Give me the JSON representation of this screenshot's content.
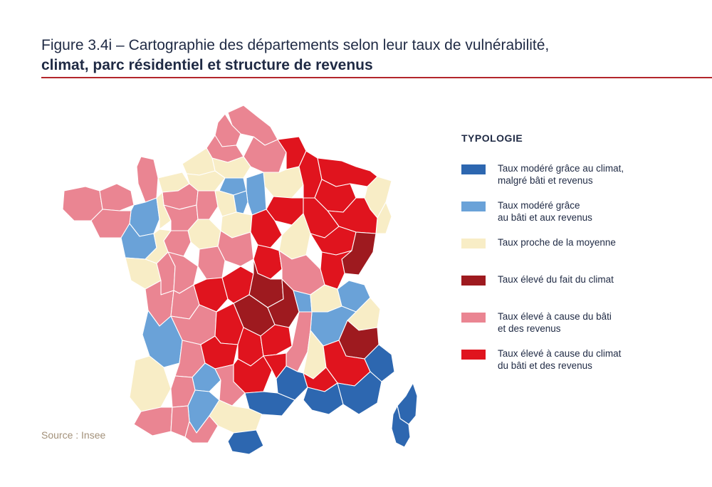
{
  "figure": {
    "title_line1": "Figure 3.4i – Cartographie des départements selon leur taux de vulnérabilité,",
    "title_line2": "climat, parc résidentiel et structure de revenus",
    "source": "Source : Insee"
  },
  "colors": {
    "dark_blue": "#2d67b0",
    "light_blue": "#6aa2d8",
    "beige": "#f8edc6",
    "dark_red": "#9e1a1f",
    "pink": "#ea8592",
    "red": "#e0141e",
    "rule": "#b3262b"
  },
  "legend": {
    "title": "TYPOLOGIE",
    "items": [
      {
        "color": "#2d67b0",
        "line1": "Taux modéré grâce au climat,",
        "line2": "malgré bâti et revenus"
      },
      {
        "color": "#6aa2d8",
        "line1": "Taux modéré grâce",
        "line2": "au bâti et aux revenus"
      },
      {
        "color": "#f8edc6",
        "line1": "Taux proche de la moyenne",
        "line2": ""
      },
      {
        "color": "#9e1a1f",
        "line1": "Taux élevé du fait du climat",
        "line2": ""
      },
      {
        "color": "#ea8592",
        "line1": "Taux élevé à cause du bâti",
        "line2": "et des revenus"
      },
      {
        "color": "#e0141e",
        "line1": "Taux élevé à cause du climat",
        "line2": "du bâti et des revenus"
      }
    ]
  }
}
